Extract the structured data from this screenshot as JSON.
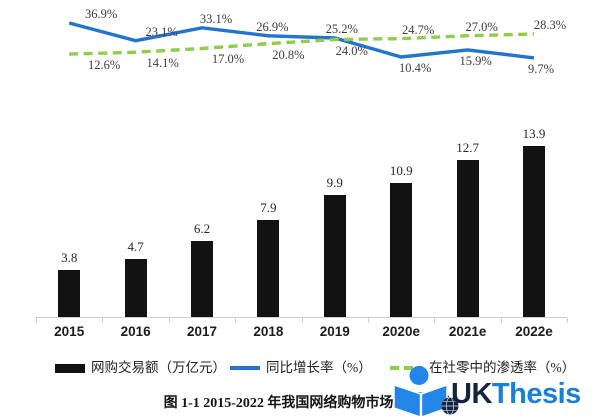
{
  "chart_data": {
    "type": "combo",
    "title": "图 1-1 2015-2022 年我国网络购物市场交易规模",
    "categories": [
      "2015",
      "2016",
      "2017",
      "2018",
      "2019",
      "2020e",
      "2021e",
      "2022e"
    ],
    "bar_series": {
      "name": "网购交易额（万亿元）",
      "values": [
        3.8,
        4.7,
        6.2,
        7.9,
        9.9,
        10.9,
        12.7,
        13.9
      ],
      "color": "#121212",
      "value_labels": [
        "3.8",
        "4.7",
        "6.2",
        "7.9",
        "9.9",
        "10.9",
        "12.7",
        "13.9"
      ]
    },
    "line_series": [
      {
        "name": "同比增长率（%）",
        "values": [
          36.9,
          23.1,
          33.1,
          26.9,
          25.2,
          10.4,
          15.9,
          9.7
        ],
        "value_labels": [
          "36.9%",
          "23.1%",
          "33.1%",
          "26.9%",
          "25.2%",
          "10.4%",
          "15.9%",
          "9.7%"
        ],
        "color": "#2473cf",
        "dash": "solid",
        "label_side": [
          "above",
          "above",
          "above",
          "above",
          "above",
          "below",
          "below",
          "below"
        ]
      },
      {
        "name": "在社零中的渗透率（%）",
        "values": [
          12.6,
          14.1,
          17.0,
          20.8,
          24.0,
          24.7,
          27.0,
          28.3
        ],
        "value_labels": [
          "12.6%",
          "14.1%",
          "17.0%",
          "20.8%",
          "24.0%",
          "24.7%",
          "27.0%",
          "28.3%"
        ],
        "color": "#8fce4b",
        "dash": "dashed",
        "label_side": [
          "below",
          "below",
          "below",
          "below",
          "below",
          "above",
          "above",
          "above"
        ]
      }
    ],
    "bar_ylim": [
      0,
      15
    ],
    "line_ylim": [
      5,
      40
    ],
    "grid": false,
    "legend_position": "bottom"
  },
  "watermark": {
    "brand_uk": "UK",
    "brand_thesis": "Thesis",
    "navy": "#16233f",
    "blue": "#1b7fd6",
    "logo_blue": "#2186e8"
  }
}
